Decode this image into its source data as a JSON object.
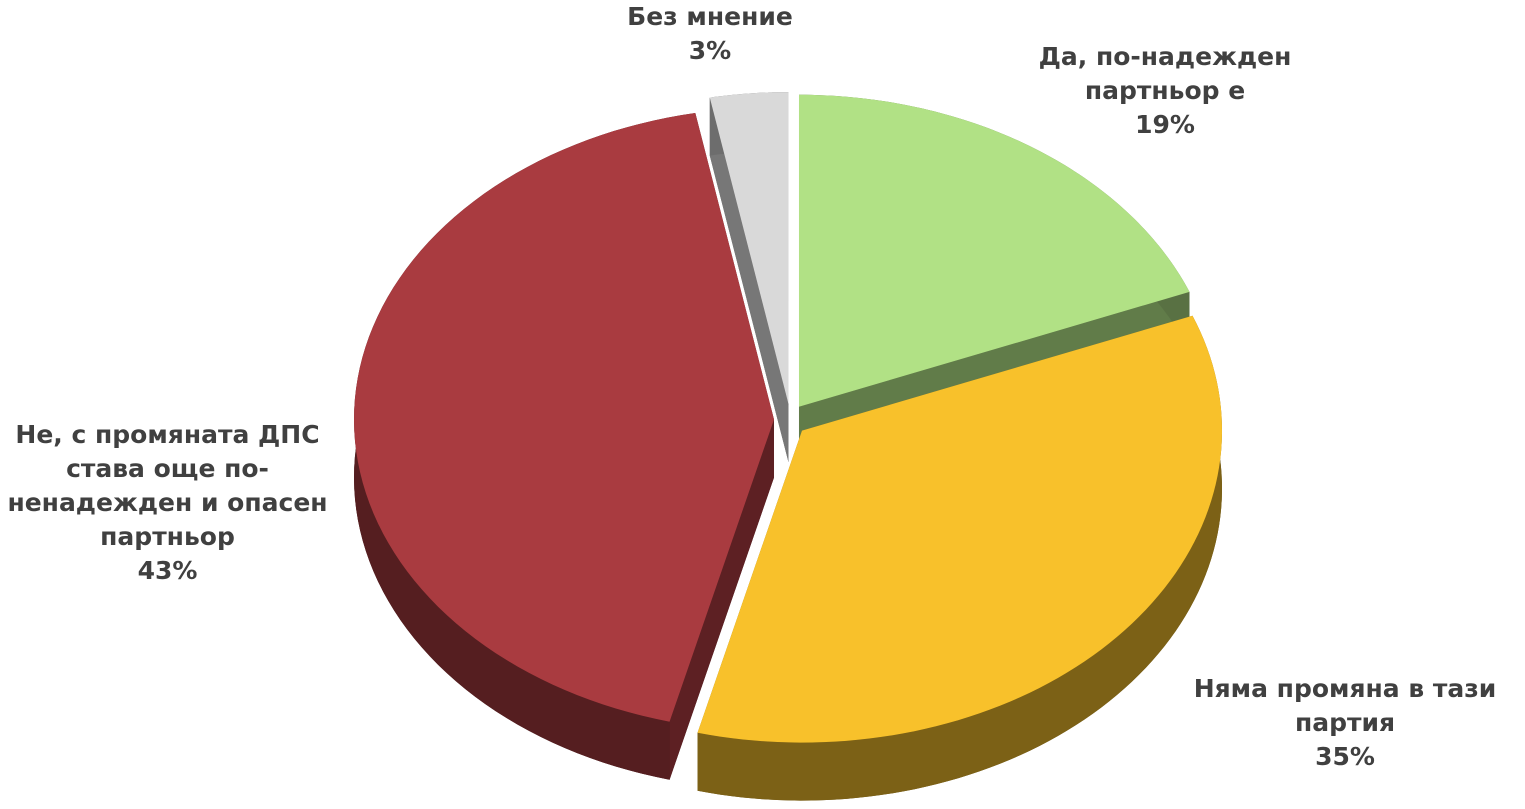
{
  "chart_data": {
    "type": "pie",
    "categories": [
      "Да, по-надежден партньор е",
      "Няма промяна в тази партия",
      "Не, с промяната ДПС става още по-ненадежден и опасен партньор",
      "Без мнение"
    ],
    "values": [
      19,
      35,
      43,
      3
    ],
    "value_labels": [
      "19%",
      "35%",
      "43%",
      "3%"
    ],
    "colors": [
      "#b1e185",
      "#f8c12b",
      "#a93b40",
      "#d9d9d9"
    ]
  }
}
